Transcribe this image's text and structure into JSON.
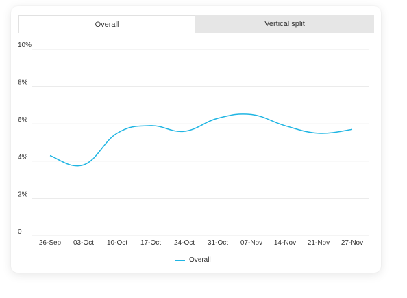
{
  "tabs": [
    {
      "label": "Overall",
      "active": true
    },
    {
      "label": "Vertical split",
      "active": false
    }
  ],
  "colors": {
    "line": "#1fb5e3",
    "grid": "#e8e8e8",
    "tab_inactive_bg": "#e6e6e6"
  },
  "chart_data": {
    "type": "line",
    "title": "",
    "xlabel": "",
    "ylabel": "",
    "categories": [
      "26-Sep",
      "03-Oct",
      "10-Oct",
      "17-Oct",
      "24-Oct",
      "31-Oct",
      "07-Nov",
      "14-Nov",
      "21-Nov",
      "27-Nov"
    ],
    "y_ticks": [
      "10%",
      "8%",
      "6%",
      "4%",
      "2%",
      "0"
    ],
    "ylim": [
      0,
      10
    ],
    "grid": true,
    "legend_position": "bottom-center",
    "series": [
      {
        "name": "Overall",
        "values": [
          4.3,
          3.8,
          5.5,
          5.9,
          5.6,
          6.3,
          6.5,
          5.9,
          5.5,
          5.7
        ]
      }
    ]
  }
}
